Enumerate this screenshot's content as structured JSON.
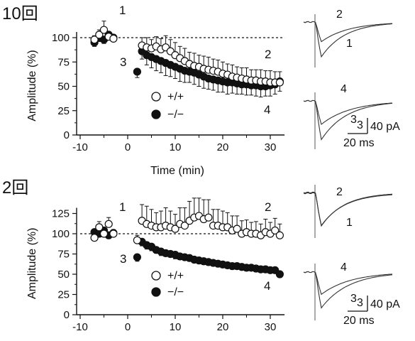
{
  "figure": {
    "chart_data": [
      {
        "type": "scatter",
        "panel_label": "10回",
        "xlabel": "Time (min)",
        "ylabel": "Amplitude (%)",
        "xlim": [
          -10,
          35
        ],
        "ylim": [
          0,
          125
        ],
        "xticks": [
          "-10",
          "0",
          "10",
          "20",
          "30"
        ],
        "yticks": [
          "0",
          "25",
          "50",
          "75",
          "100"
        ],
        "reference_line": 100,
        "annotations": {
          "n1": "1",
          "n2": "2",
          "n3": "3",
          "n4": "4"
        },
        "legend": [
          {
            "symbol": "open",
            "label": "+/+"
          },
          {
            "symbol": "filled",
            "label": "−/−"
          }
        ],
        "series": [
          {
            "name": "+/+",
            "marker": "open",
            "x": [
              -7,
              -6,
              -5,
              -4,
              -3,
              3,
              4,
              5,
              6,
              7,
              8,
              9,
              10,
              11,
              12,
              13,
              14,
              15,
              16,
              17,
              18,
              19,
              20,
              21,
              22,
              23,
              24,
              25,
              26,
              27,
              28,
              29,
              30,
              31,
              32
            ],
            "y": [
              98,
              103,
              108,
              101,
              99,
              92,
              90,
              89,
              91,
              88,
              90,
              86,
              82,
              79,
              76,
              73,
              71,
              70,
              68,
              67,
              66,
              65,
              63,
              62,
              60,
              59,
              58,
              57,
              56,
              56,
              55,
              55,
              54,
              54,
              54
            ],
            "err": [
              4,
              5,
              9,
              5,
              4,
              8,
              10,
              9,
              10,
              11,
              12,
              12,
              13,
              12,
              13,
              12,
              13,
              12,
              13,
              13,
              12,
              12,
              12,
              11,
              12,
              11,
              11,
              12,
              11,
              11,
              12,
              11,
              12,
              11,
              11
            ]
          },
          {
            "name": "−/−",
            "marker": "filled",
            "x": [
              -7,
              -6,
              -5,
              -4,
              -3,
              2,
              3,
              4,
              5,
              6,
              7,
              8,
              9,
              10,
              11,
              12,
              13,
              14,
              15,
              16,
              17,
              18,
              19,
              20,
              21,
              22,
              23,
              24,
              25,
              26,
              27,
              28,
              29,
              30,
              31,
              32
            ],
            "y": [
              95,
              100,
              98,
              103,
              100,
              65,
              86,
              82,
              80,
              78,
              76,
              74,
              72,
              70,
              68,
              66,
              65,
              64,
              62,
              60,
              58,
              57,
              56,
              55,
              54,
              54,
              53,
              52,
              52,
              51,
              51,
              50,
              50,
              51,
              52,
              55
            ],
            "err": [
              4,
              4,
              4,
              4,
              3,
              6,
              8,
              10,
              11,
              12,
              12,
              13,
              12,
              12,
              13,
              12,
              11,
              12,
              12,
              12,
              11,
              11,
              12,
              11,
              12,
              11,
              11,
              10,
              11,
              10,
              11,
              11,
              10,
              11,
              10,
              10
            ]
          }
        ],
        "traces": {
          "top": {
            "labels": [
              "2",
              "1"
            ]
          },
          "bottom": {
            "labels": [
              "4",
              "3"
            ]
          },
          "scale_bar": {
            "amplitude": "40 pA",
            "time": "20 ms"
          }
        }
      },
      {
        "type": "scatter",
        "panel_label": "2回",
        "xlabel": "",
        "ylabel": "Amplitude (%)",
        "xlim": [
          -10,
          35
        ],
        "ylim": [
          0,
          140
        ],
        "xticks": [
          "-10",
          "0",
          "10",
          "20",
          "30"
        ],
        "yticks": [
          "0",
          "25",
          "50",
          "75",
          "100",
          "125"
        ],
        "reference_line": 100,
        "annotations": {
          "n1": "1",
          "n2": "2",
          "n3": "3",
          "n4": "4"
        },
        "legend": [
          {
            "symbol": "open",
            "label": "+/+"
          },
          {
            "symbol": "filled",
            "label": "−/−"
          }
        ],
        "series": [
          {
            "name": "+/+",
            "marker": "open",
            "x": [
              -7,
              -6,
              -5,
              -4,
              -3,
              2,
              3,
              4,
              5,
              6,
              7,
              8,
              9,
              10,
              11,
              12,
              13,
              14,
              15,
              16,
              17,
              18,
              19,
              20,
              21,
              22,
              23,
              24,
              25,
              26,
              27,
              28,
              29,
              30,
              31,
              32
            ],
            "y": [
              95,
              108,
              100,
              112,
              100,
              92,
              116,
              112,
              110,
              108,
              108,
              110,
              108,
              106,
              112,
              110,
              116,
              120,
              122,
              118,
              120,
              110,
              110,
              108,
              108,
              104,
              106,
              100,
              102,
              100,
              100,
              98,
              102,
              100,
              104,
              98
            ],
            "err": [
              5,
              7,
              6,
              8,
              5,
              6,
              20,
              22,
              20,
              18,
              20,
              22,
              20,
              18,
              20,
              22,
              24,
              24,
              22,
              24,
              22,
              20,
              20,
              20,
              18,
              18,
              16,
              16,
              15,
              14,
              15,
              14,
              16,
              14,
              15,
              14
            ]
          },
          {
            "name": "−/−",
            "marker": "filled",
            "x": [
              -7,
              -6,
              -5,
              -4,
              -3,
              2,
              3,
              4,
              5,
              6,
              7,
              8,
              9,
              10,
              11,
              12,
              13,
              14,
              15,
              16,
              17,
              18,
              19,
              20,
              21,
              22,
              23,
              24,
              25,
              26,
              27,
              28,
              29,
              30,
              31,
              32
            ],
            "y": [
              102,
              100,
              104,
              98,
              101,
              71,
              90,
              86,
              84,
              80,
              78,
              76,
              75,
              74,
              72,
              71,
              70,
              68,
              67,
              66,
              65,
              64,
              63,
              62,
              61,
              60,
              60,
              59,
              58,
              58,
              57,
              56,
              56,
              55,
              55,
              50
            ],
            "err": [
              4,
              4,
              4,
              4,
              3,
              5,
              5,
              5,
              5,
              4,
              5,
              4,
              4,
              5,
              4,
              4,
              4,
              4,
              4,
              4,
              4,
              4,
              4,
              4,
              4,
              4,
              4,
              3,
              4,
              3,
              4,
              3,
              4,
              3,
              3,
              4
            ]
          }
        ],
        "traces": {
          "top": {
            "labels": [
              "2",
              "1"
            ]
          },
          "bottom": {
            "labels": [
              "4",
              "3"
            ]
          },
          "scale_bar": {
            "amplitude": "40 pA",
            "time": "20 ms"
          }
        }
      }
    ]
  }
}
